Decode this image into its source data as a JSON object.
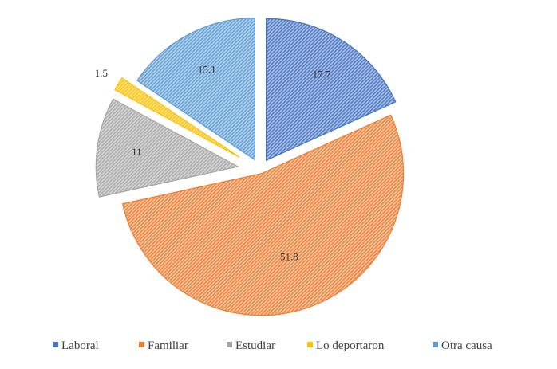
{
  "chart_data": {
    "type": "pie",
    "title": "",
    "categories": [
      "Laboral",
      "Familiar",
      "Estudiar",
      "Lo deportaron",
      "Otra causa"
    ],
    "values": [
      17.7,
      51.8,
      11,
      1.5,
      15.1
    ],
    "value_labels": [
      "17.7",
      "51.8",
      "11",
      "1.5",
      "15.1"
    ],
    "exploded": true,
    "hatched_fill": true,
    "colors": [
      "#4472C4",
      "#ED7D31",
      "#A5A5A5",
      "#FFC000",
      "#5B9BD5"
    ],
    "legend": {
      "position": "bottom",
      "entries": [
        "Laboral",
        "Familiar",
        "Estudiar",
        "Lo deportaron",
        "Otra causa"
      ]
    }
  }
}
